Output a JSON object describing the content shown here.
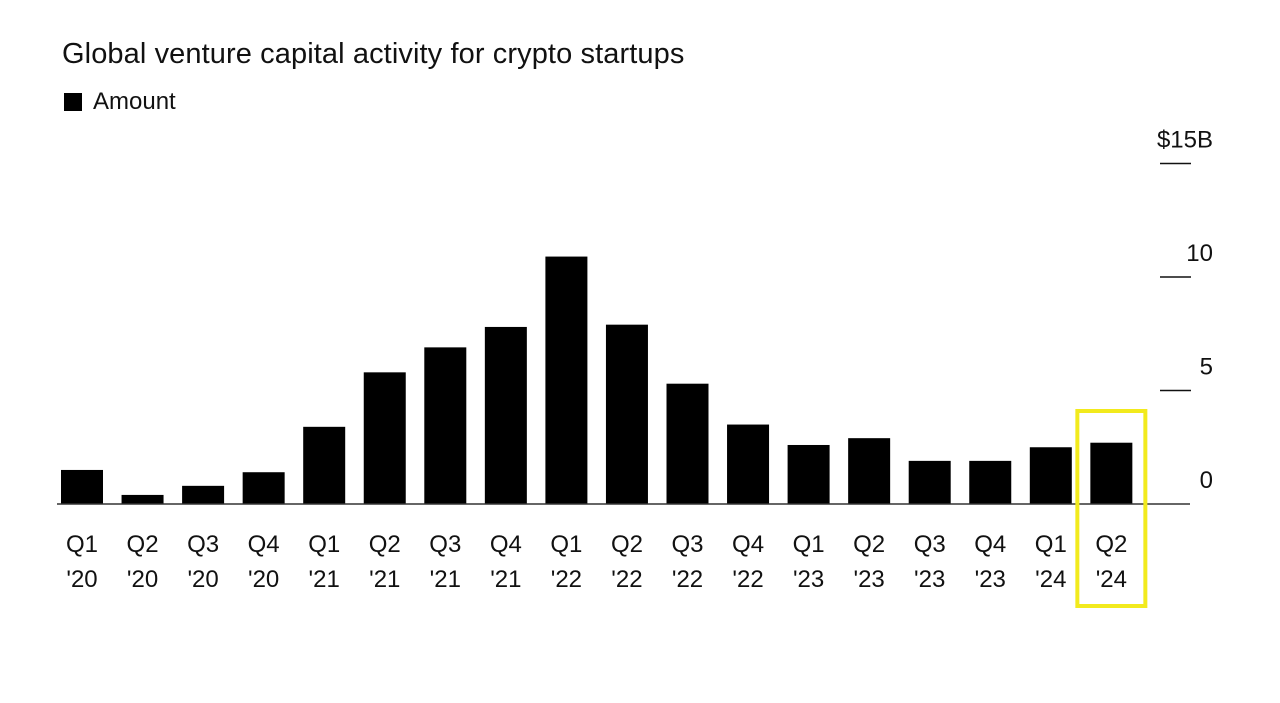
{
  "chart_data": {
    "type": "bar",
    "title": "Global venture capital activity for crypto startups",
    "legend": [
      "Amount"
    ],
    "legend_placement": "top-left",
    "categories": [
      {
        "q": "Q1",
        "y": "'20"
      },
      {
        "q": "Q2",
        "y": "'20"
      },
      {
        "q": "Q3",
        "y": "'20"
      },
      {
        "q": "Q4",
        "y": "'20"
      },
      {
        "q": "Q1",
        "y": "'21"
      },
      {
        "q": "Q2",
        "y": "'21"
      },
      {
        "q": "Q3",
        "y": "'21"
      },
      {
        "q": "Q4",
        "y": "'21"
      },
      {
        "q": "Q1",
        "y": "'22"
      },
      {
        "q": "Q2",
        "y": "'22"
      },
      {
        "q": "Q3",
        "y": "'22"
      },
      {
        "q": "Q4",
        "y": "'22"
      },
      {
        "q": "Q1",
        "y": "'23"
      },
      {
        "q": "Q2",
        "y": "'23"
      },
      {
        "q": "Q3",
        "y": "'23"
      },
      {
        "q": "Q4",
        "y": "'23"
      },
      {
        "q": "Q1",
        "y": "'24"
      },
      {
        "q": "Q2",
        "y": "'24"
      }
    ],
    "series": [
      {
        "name": "Amount",
        "values": [
          1.5,
          0.4,
          0.8,
          1.4,
          3.4,
          5.8,
          6.9,
          7.8,
          10.9,
          7.9,
          5.3,
          3.5,
          2.6,
          2.9,
          1.9,
          1.9,
          2.5,
          2.7
        ]
      }
    ],
    "yticks": [
      {
        "value": 0,
        "label": "0"
      },
      {
        "value": 5,
        "label": "5"
      },
      {
        "value": 10,
        "label": "10"
      },
      {
        "value": 15,
        "label": "$15B"
      }
    ],
    "ylim": [
      0,
      15
    ],
    "axis_side": "right",
    "grid": false,
    "highlight_index": 17,
    "highlight_color": "#F2EA1D",
    "bar_color": "#000000"
  }
}
